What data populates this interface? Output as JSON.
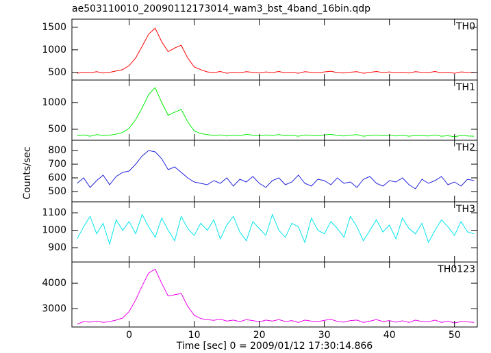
{
  "title": "ae503110010_20090112173014_wam3_bst_4band_16bin.qdp",
  "ylabel": "Counts/sec",
  "xlabel": "Time [sec] 0 = 2009/01/12 17:30:14.866",
  "chart_data": [
    {
      "type": "line",
      "label": "TH0",
      "color": "#ff0000",
      "x": [
        -8,
        -7,
        -6,
        -5,
        -4,
        -3,
        -2,
        -1,
        0,
        1,
        2,
        3,
        4,
        5,
        6,
        7,
        8,
        9,
        10,
        11,
        12,
        13,
        14,
        15,
        16,
        17,
        18,
        19,
        20,
        21,
        22,
        23,
        24,
        25,
        26,
        27,
        28,
        29,
        30,
        31,
        32,
        33,
        34,
        35,
        36,
        37,
        38,
        39,
        40,
        41,
        42,
        43,
        44,
        45,
        46,
        47,
        48,
        49,
        50,
        51,
        52,
        53
      ],
      "values": [
        480,
        505,
        490,
        515,
        485,
        500,
        530,
        560,
        650,
        820,
        1080,
        1350,
        1480,
        1180,
        960,
        1040,
        1100,
        820,
        620,
        560,
        510,
        495,
        520,
        480,
        505,
        490,
        515,
        500,
        485,
        510,
        495,
        520,
        490,
        505,
        480,
        515,
        500,
        490,
        510,
        525,
        495,
        485,
        505,
        515,
        480,
        500,
        520,
        495,
        510,
        490,
        505,
        485,
        515,
        500,
        495,
        520,
        490,
        505,
        480,
        510,
        500,
        495
      ],
      "xlim": [
        -8.8,
        53.5
      ],
      "xticks": [
        0,
        10,
        20,
        30,
        40,
        50
      ],
      "ylim": [
        330,
        1680
      ],
      "yticks": [
        500,
        1000,
        1500
      ]
    },
    {
      "type": "line",
      "label": "TH1",
      "color": "#00ee00",
      "x": [
        -8,
        -7,
        -6,
        -5,
        -4,
        -3,
        -2,
        -1,
        0,
        1,
        2,
        3,
        4,
        5,
        6,
        7,
        8,
        9,
        10,
        11,
        12,
        13,
        14,
        15,
        16,
        17,
        18,
        19,
        20,
        21,
        22,
        23,
        24,
        25,
        26,
        27,
        28,
        29,
        30,
        31,
        32,
        33,
        34,
        35,
        36,
        37,
        38,
        39,
        40,
        41,
        42,
        43,
        44,
        45,
        46,
        47,
        48,
        49,
        50,
        51,
        52,
        53
      ],
      "values": [
        380,
        395,
        370,
        400,
        385,
        390,
        410,
        440,
        520,
        680,
        900,
        1150,
        1280,
        1000,
        760,
        820,
        870,
        640,
        470,
        420,
        400,
        385,
        395,
        375,
        390,
        380,
        405,
        390,
        375,
        395,
        385,
        400,
        380,
        390,
        370,
        395,
        385,
        380,
        395,
        405,
        385,
        375,
        390,
        400,
        370,
        385,
        395,
        380,
        390,
        375,
        390,
        370,
        385,
        380,
        375,
        395,
        370,
        380,
        360,
        385,
        375,
        370
      ],
      "xlim": [
        -8.8,
        53.5
      ],
      "xticks": [
        0,
        10,
        20,
        30,
        40,
        50
      ],
      "ylim": [
        295,
        1420
      ],
      "yticks": [
        500,
        1000
      ]
    },
    {
      "type": "line",
      "label": "TH2",
      "color": "#2020dd",
      "x": [
        -8,
        -7,
        -6,
        -5,
        -4,
        -3,
        -2,
        -1,
        0,
        1,
        2,
        3,
        4,
        5,
        6,
        7,
        8,
        9,
        10,
        11,
        12,
        13,
        14,
        15,
        16,
        17,
        18,
        19,
        20,
        21,
        22,
        23,
        24,
        25,
        26,
        27,
        28,
        29,
        30,
        31,
        32,
        33,
        34,
        35,
        36,
        37,
        38,
        39,
        40,
        41,
        42,
        43,
        44,
        45,
        46,
        47,
        48,
        49,
        50,
        51,
        52,
        53
      ],
      "values": [
        560,
        600,
        530,
        580,
        620,
        550,
        610,
        640,
        650,
        700,
        760,
        800,
        790,
        740,
        660,
        680,
        640,
        600,
        570,
        560,
        550,
        580,
        560,
        600,
        540,
        590,
        570,
        610,
        560,
        530,
        580,
        600,
        550,
        570,
        620,
        560,
        540,
        590,
        580,
        550,
        600,
        560,
        570,
        530,
        590,
        610,
        560,
        540,
        580,
        570,
        600,
        550,
        520,
        590,
        560,
        580,
        610,
        550,
        570,
        540,
        590,
        580
      ],
      "xlim": [
        -8.8,
        53.5
      ],
      "xticks": [
        0,
        10,
        20,
        30,
        40,
        50
      ],
      "ylim": [
        425,
        875
      ],
      "yticks": [
        500,
        600,
        700,
        800
      ]
    },
    {
      "type": "line",
      "label": "TH3",
      "color": "#00e5ee",
      "x": [
        -8,
        -7,
        -6,
        -5,
        -4,
        -3,
        -2,
        -1,
        0,
        1,
        2,
        3,
        4,
        5,
        6,
        7,
        8,
        9,
        10,
        11,
        12,
        13,
        14,
        15,
        16,
        17,
        18,
        19,
        20,
        21,
        22,
        23,
        24,
        25,
        26,
        27,
        28,
        29,
        30,
        31,
        32,
        33,
        34,
        35,
        36,
        37,
        38,
        39,
        40,
        41,
        42,
        43,
        44,
        45,
        46,
        47,
        48,
        49,
        50,
        51,
        52,
        53
      ],
      "values": [
        950,
        1020,
        1080,
        980,
        1040,
        920,
        1060,
        1000,
        1050,
        980,
        1090,
        1020,
        960,
        1070,
        1000,
        940,
        1080,
        1010,
        970,
        1040,
        1000,
        1060,
        950,
        1030,
        1080,
        990,
        940,
        1050,
        1010,
        970,
        1090,
        1000,
        960,
        1040,
        1020,
        930,
        1070,
        1000,
        980,
        1050,
        1010,
        960,
        1080,
        1020,
        940,
        1000,
        1060,
        990,
        1030,
        950,
        1070,
        1010,
        980,
        1040,
        930,
        1000,
        1060,
        1020,
        970,
        1050,
        990,
        980
      ],
      "xlim": [
        -8.8,
        53.5
      ],
      "xticks": [
        0,
        10,
        20,
        30,
        40,
        50
      ],
      "ylim": [
        818,
        1163
      ],
      "yticks": [
        900,
        1000,
        1100
      ]
    },
    {
      "type": "line",
      "label": "TH0123",
      "color": "#ee00ee",
      "x": [
        -8,
        -7,
        -6,
        -5,
        -4,
        -3,
        -2,
        -1,
        0,
        1,
        2,
        3,
        4,
        5,
        6,
        7,
        8,
        9,
        10,
        11,
        12,
        13,
        14,
        15,
        16,
        17,
        18,
        19,
        20,
        21,
        22,
        23,
        24,
        25,
        26,
        27,
        28,
        29,
        30,
        31,
        32,
        33,
        34,
        35,
        36,
        37,
        38,
        39,
        40,
        41,
        42,
        43,
        44,
        45,
        46,
        47,
        48,
        49,
        50,
        51,
        52,
        53
      ],
      "values": [
        2400,
        2500,
        2480,
        2520,
        2470,
        2500,
        2560,
        2640,
        2900,
        3350,
        3900,
        4400,
        4550,
        4000,
        3500,
        3550,
        3600,
        3100,
        2750,
        2620,
        2580,
        2550,
        2600,
        2520,
        2560,
        2500,
        2580,
        2540,
        2490,
        2560,
        2520,
        2580,
        2500,
        2540,
        2470,
        2560,
        2520,
        2500,
        2550,
        2590,
        2510,
        2480,
        2540,
        2560,
        2470,
        2520,
        2580,
        2500,
        2540,
        2480,
        2530,
        2470,
        2560,
        2500,
        2490,
        2560,
        2470,
        2520,
        2450,
        2500,
        2490,
        2470
      ],
      "xlim": [
        -8.8,
        53.5
      ],
      "xticks": [
        0,
        10,
        20,
        30,
        40,
        50
      ],
      "ylim": [
        2290,
        4830
      ],
      "yticks": [
        3000,
        4000
      ]
    }
  ]
}
